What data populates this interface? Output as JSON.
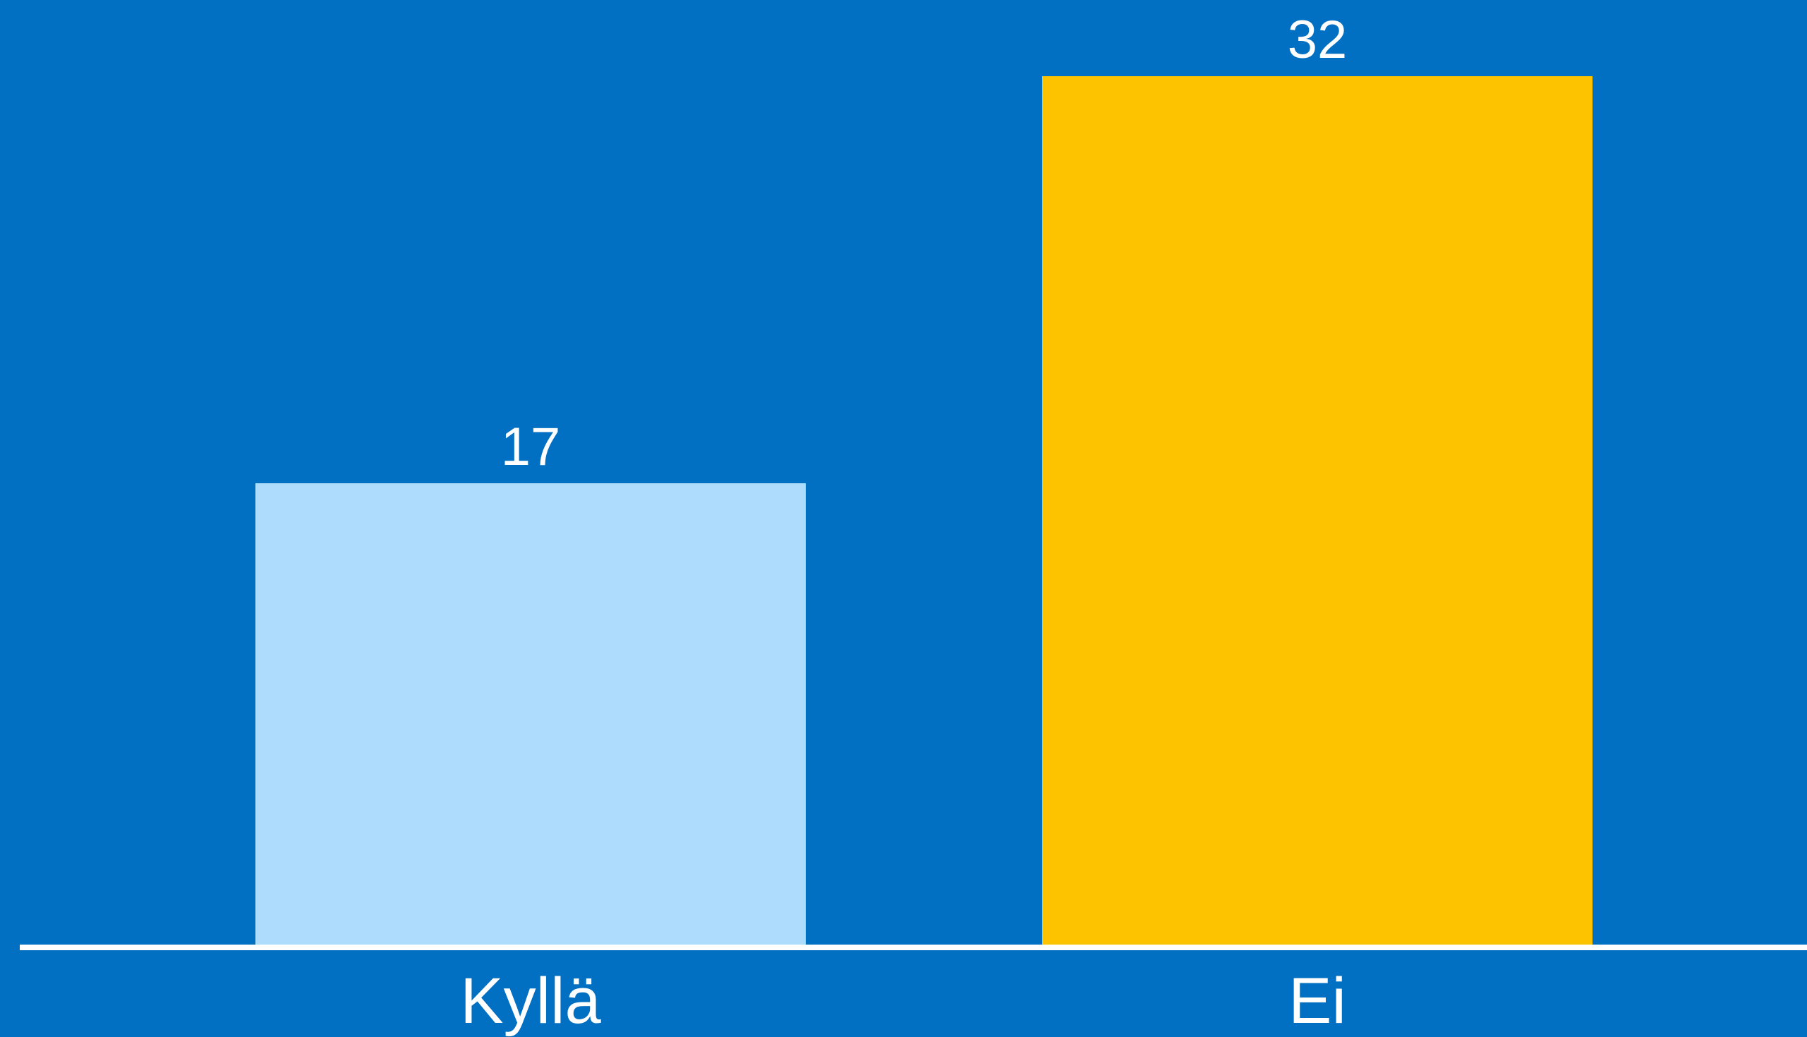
{
  "chart_data": {
    "type": "bar",
    "categories": [
      "Kyllä",
      "Ei"
    ],
    "values": [
      17,
      32
    ],
    "bar_colors": [
      "#addcfc",
      "#fdc300"
    ],
    "background_color": "#0270c2",
    "axis_color": "#ffffff",
    "label_color": "#ffffff",
    "ylim": [
      0,
      32
    ],
    "grid": false,
    "legend": "none",
    "title": "",
    "xlabel": "",
    "ylabel": ""
  }
}
